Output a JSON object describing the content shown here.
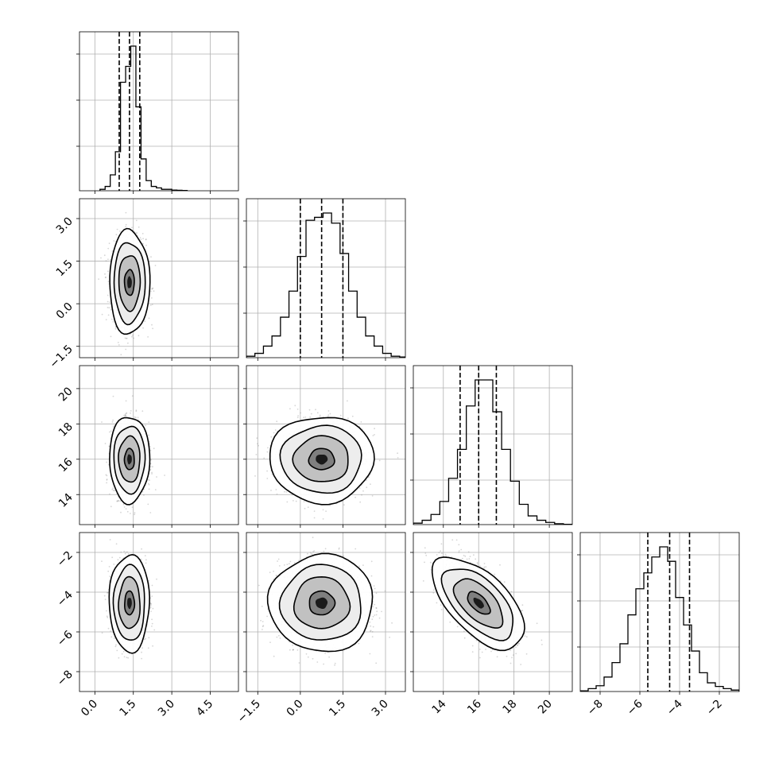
{
  "chart_data": {
    "type": "corner",
    "title": "",
    "grid": true,
    "quantile_line_style": "dashed",
    "parameters": [
      {
        "index": 0,
        "range": [
          -0.6,
          5.6
        ],
        "ticks": [
          0.0,
          1.5,
          3.0,
          4.5
        ],
        "tick_labels": [
          "0.0",
          "1.5",
          "3.0",
          "4.5"
        ],
        "quantiles": [
          0.95,
          1.35,
          1.75
        ],
        "mean": 1.35,
        "sd": 0.32,
        "hist_edges": [
          0.2,
          0.4,
          0.6,
          0.8,
          1.0,
          1.2,
          1.4,
          1.6,
          1.8,
          2.0,
          2.2,
          2.4,
          2.6,
          2.8,
          3.0,
          3.2,
          3.4,
          3.6
        ],
        "hist_counts": [
          0.01,
          0.03,
          0.11,
          0.27,
          0.75,
          0.86,
          1.0,
          0.58,
          0.22,
          0.07,
          0.03,
          0.02,
          0.01,
          0.01,
          0.005,
          0.003,
          0.002
        ]
      },
      {
        "index": 1,
        "range": [
          -1.9,
          3.7
        ],
        "ticks": [
          -1.5,
          0.0,
          1.5,
          3.0
        ],
        "tick_labels": [
          "−1.5",
          "0.0",
          "1.5",
          "3.0"
        ],
        "quantiles": [
          0.0,
          0.75,
          1.5
        ],
        "mean": 0.75,
        "sd": 0.75,
        "hist_edges": [
          -1.9,
          -1.6,
          -1.3,
          -1.0,
          -0.7,
          -0.4,
          -0.1,
          0.2,
          0.5,
          0.8,
          1.1,
          1.4,
          1.7,
          2.0,
          2.3,
          2.6,
          2.9,
          3.2,
          3.5,
          3.7
        ],
        "hist_counts": [
          0.01,
          0.03,
          0.08,
          0.15,
          0.28,
          0.46,
          0.7,
          0.95,
          0.97,
          1.0,
          0.93,
          0.72,
          0.46,
          0.28,
          0.15,
          0.08,
          0.03,
          0.01,
          0.005
        ]
      },
      {
        "index": 2,
        "range": [
          12.3,
          21.3
        ],
        "ticks": [
          14,
          16,
          18,
          20
        ],
        "tick_labels": [
          "14",
          "16",
          "18",
          "20"
        ],
        "quantiles": [
          14.95,
          16.0,
          17.0
        ],
        "mean": 16.0,
        "sd": 1.0,
        "hist_edges": [
          12.3,
          12.8,
          13.3,
          13.8,
          14.3,
          14.8,
          15.3,
          15.8,
          16.3,
          16.8,
          17.3,
          17.8,
          18.3,
          18.8,
          19.3,
          19.8,
          20.3,
          20.8,
          21.3
        ],
        "hist_counts": [
          0.01,
          0.03,
          0.07,
          0.16,
          0.32,
          0.52,
          0.82,
          1.0,
          1.0,
          0.78,
          0.52,
          0.3,
          0.14,
          0.06,
          0.03,
          0.015,
          0.006,
          0.002
        ]
      },
      {
        "index": 3,
        "range": [
          -9.0,
          -1.0
        ],
        "ticks": [
          -8,
          -6,
          -4,
          -2
        ],
        "tick_labels": [
          "−8",
          "−6",
          "−4",
          "−2"
        ],
        "quantiles": [
          -5.6,
          -4.5,
          -3.5
        ],
        "mean": -4.55,
        "sd": 1.0,
        "hist_edges": [
          -9.0,
          -8.6,
          -8.2,
          -7.8,
          -7.4,
          -7.0,
          -6.6,
          -6.2,
          -5.8,
          -5.4,
          -5.0,
          -4.6,
          -4.2,
          -3.8,
          -3.4,
          -3.0,
          -2.6,
          -2.2,
          -1.8,
          -1.4,
          -1.0
        ],
        "hist_counts": [
          0.005,
          0.02,
          0.04,
          0.1,
          0.2,
          0.33,
          0.53,
          0.71,
          0.82,
          0.93,
          1.0,
          0.9,
          0.65,
          0.46,
          0.28,
          0.13,
          0.06,
          0.035,
          0.02,
          0.01
        ]
      }
    ],
    "correlations": {
      "2_3": -0.6
    }
  }
}
